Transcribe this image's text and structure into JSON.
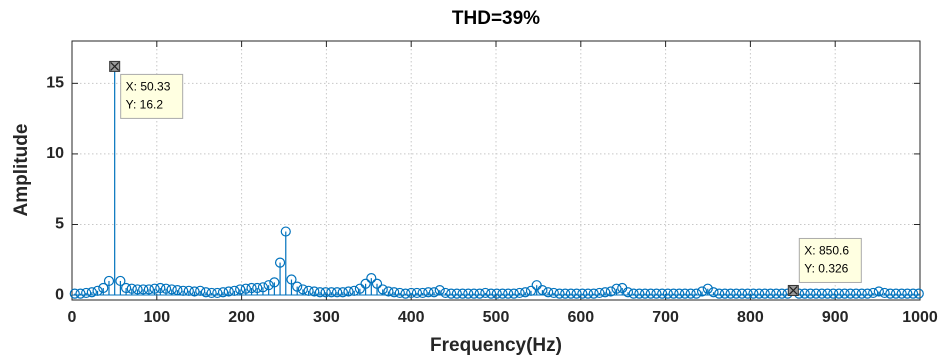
{
  "chart_data": {
    "type": "stem",
    "title": "THD=39%",
    "xlabel": "Frequency(Hz)",
    "ylabel": "Amplitude",
    "xlim": [
      0,
      1000
    ],
    "ylim": [
      -0.35,
      18
    ],
    "xticks": [
      0,
      100,
      200,
      300,
      400,
      500,
      600,
      700,
      800,
      900,
      1000
    ],
    "yticks": [
      0,
      5,
      10,
      15
    ],
    "grid": true,
    "color": "#0072bd",
    "x": [
      3.26,
      9.99,
      16.71,
      23.44,
      30.16,
      36.89,
      43.61,
      50.33,
      57.06,
      63.79,
      70.51,
      77.24,
      83.96,
      90.69,
      97.41,
      104.14,
      110.86,
      117.59,
      124.31,
      131.04,
      137.76,
      144.49,
      151.21,
      157.94,
      164.66,
      171.39,
      178.11,
      184.84,
      191.56,
      198.29,
      205.01,
      211.74,
      218.46,
      225.19,
      231.91,
      238.64,
      245.36,
      252.09,
      258.81,
      265.54,
      272.26,
      278.99,
      285.71,
      292.44,
      299.16,
      305.89,
      312.61,
      319.34,
      326.06,
      332.79,
      339.51,
      346.24,
      352.96,
      359.69,
      366.41,
      373.14,
      379.86,
      386.59,
      393.31,
      400.04,
      406.76,
      413.49,
      420.21,
      426.94,
      433.66,
      440.39,
      447.11,
      453.84,
      460.56,
      467.29,
      474.01,
      480.74,
      487.46,
      494.19,
      500.91,
      507.64,
      514.36,
      521.09,
      527.81,
      534.54,
      541.26,
      547.99,
      554.71,
      561.44,
      568.16,
      574.89,
      581.61,
      588.34,
      595.06,
      601.79,
      608.51,
      615.24,
      621.96,
      628.69,
      635.41,
      642.14,
      648.86,
      655.59,
      662.31,
      669.04,
      675.76,
      682.49,
      689.21,
      695.94,
      702.66,
      709.39,
      716.11,
      722.84,
      729.56,
      736.29,
      743.01,
      749.74,
      756.46,
      763.19,
      769.91,
      776.64,
      783.36,
      790.09,
      796.81,
      803.54,
      810.26,
      816.99,
      823.71,
      830.44,
      837.16,
      843.89,
      850.6,
      857.34,
      864.06,
      870.79,
      877.51,
      884.24,
      890.96,
      897.69,
      904.41,
      911.14,
      917.86,
      924.59,
      931.31,
      938.04,
      944.76,
      951.49,
      958.21,
      964.94,
      971.66,
      978.39,
      985.11,
      991.84,
      998.56
    ],
    "values": [
      0.1,
      0.1,
      0.15,
      0.2,
      0.3,
      0.5,
      1.0,
      16.2,
      1.0,
      0.5,
      0.45,
      0.4,
      0.4,
      0.4,
      0.45,
      0.5,
      0.45,
      0.4,
      0.35,
      0.3,
      0.3,
      0.25,
      0.3,
      0.2,
      0.15,
      0.15,
      0.2,
      0.25,
      0.3,
      0.4,
      0.45,
      0.5,
      0.5,
      0.55,
      0.7,
      0.9,
      2.3,
      4.5,
      1.1,
      0.6,
      0.4,
      0.3,
      0.25,
      0.2,
      0.2,
      0.2,
      0.2,
      0.2,
      0.25,
      0.3,
      0.45,
      0.8,
      1.2,
      0.8,
      0.4,
      0.25,
      0.2,
      0.15,
      0.1,
      0.15,
      0.15,
      0.15,
      0.2,
      0.2,
      0.35,
      0.15,
      0.1,
      0.1,
      0.1,
      0.1,
      0.1,
      0.1,
      0.15,
      0.1,
      0.1,
      0.1,
      0.1,
      0.1,
      0.15,
      0.2,
      0.3,
      0.7,
      0.35,
      0.2,
      0.15,
      0.1,
      0.1,
      0.1,
      0.1,
      0.1,
      0.1,
      0.1,
      0.15,
      0.2,
      0.25,
      0.45,
      0.5,
      0.2,
      0.1,
      0.1,
      0.1,
      0.1,
      0.1,
      0.1,
      0.1,
      0.1,
      0.1,
      0.1,
      0.1,
      0.1,
      0.25,
      0.45,
      0.2,
      0.1,
      0.1,
      0.1,
      0.1,
      0.1,
      0.1,
      0.1,
      0.1,
      0.1,
      0.1,
      0.1,
      0.1,
      0.1,
      0.326,
      0.1,
      0.1,
      0.1,
      0.1,
      0.1,
      0.1,
      0.1,
      0.1,
      0.1,
      0.1,
      0.1,
      0.1,
      0.1,
      0.15,
      0.25,
      0.15,
      0.1,
      0.1,
      0.1,
      0.1,
      0.1,
      0.1
    ],
    "datatips": [
      {
        "x": 50.33,
        "y": 16.2,
        "label": [
          "X: 50.33",
          "Y: 16.2"
        ]
      },
      {
        "x": 850.6,
        "y": 0.326,
        "label": [
          "X: 850.6",
          "Y: 0.326"
        ]
      }
    ]
  }
}
